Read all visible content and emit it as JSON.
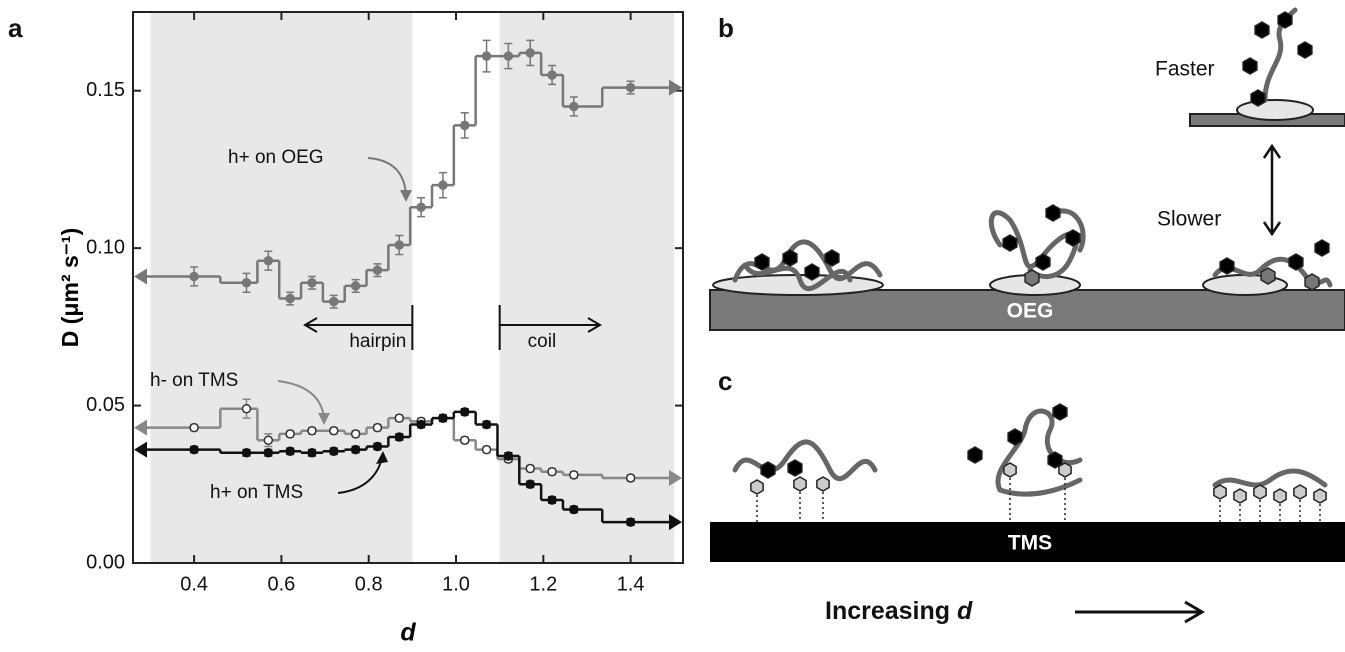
{
  "chart_data": {
    "type": "step",
    "x": [
      0.4,
      0.52,
      0.57,
      0.62,
      0.67,
      0.72,
      0.77,
      0.82,
      0.87,
      0.92,
      0.97,
      1.02,
      1.07,
      1.12,
      1.17,
      1.22,
      1.27,
      1.4
    ],
    "series": [
      {
        "name": "h+ on OEG",
        "color": "#777777",
        "marker": "filled",
        "values": [
          0.091,
          0.089,
          0.096,
          0.084,
          0.089,
          0.083,
          0.088,
          0.093,
          0.101,
          0.113,
          0.12,
          0.139,
          0.161,
          0.161,
          0.162,
          0.155,
          0.145,
          0.151
        ],
        "errors": [
          0.003,
          0.003,
          0.003,
          0.002,
          0.002,
          0.002,
          0.002,
          0.002,
          0.003,
          0.003,
          0.004,
          0.004,
          0.005,
          0.004,
          0.004,
          0.003,
          0.003,
          0.002
        ]
      },
      {
        "name": "h-  on TMS",
        "color": "#888888",
        "marker": "open",
        "values": [
          0.043,
          0.049,
          0.039,
          0.041,
          0.042,
          0.042,
          0.041,
          0.043,
          0.046,
          0.045,
          0.046,
          0.039,
          0.036,
          0.033,
          0.03,
          0.029,
          0.028,
          0.027
        ],
        "errors": [
          0.001,
          0.003,
          0.002,
          0.001,
          0.001,
          0.001,
          0.001,
          0.001,
          0.001,
          0.001,
          0.001,
          0.001,
          0.001,
          0.001,
          0.001,
          0.001,
          0.001,
          0.001
        ]
      },
      {
        "name": "h+ on TMS",
        "color": "#111111",
        "marker": "filled",
        "values": [
          0.036,
          0.035,
          0.035,
          0.0355,
          0.035,
          0.0355,
          0.036,
          0.037,
          0.04,
          0.044,
          0.046,
          0.048,
          0.044,
          0.034,
          0.025,
          0.02,
          0.017,
          0.013
        ],
        "errors": [
          0.001,
          0.001,
          0.001,
          0.001,
          0.001,
          0.001,
          0.001,
          0.001,
          0.001,
          0.001,
          0.001,
          0.001,
          0.001,
          0.001,
          0.001,
          0.001,
          0.001,
          0.001
        ]
      }
    ],
    "xlabel": "d",
    "ylabel": "D (μm² s⁻¹)",
    "xlim": [
      0.26,
      1.52
    ],
    "ylim": [
      0,
      0.175
    ],
    "xticks": [
      0.4,
      0.6,
      0.8,
      {
        "value": 1,
        "label": "1.0"
      },
      1.2,
      1.4
    ],
    "yticks": [
      {
        "value": 0,
        "label": "0.00"
      },
      {
        "value": 0.05,
        "label": "0.05"
      },
      {
        "value": 0.1,
        "label": "0.10"
      },
      {
        "value": 0.15,
        "label": "0.15"
      }
    ],
    "shaded_regions": [
      [
        0.3,
        0.9
      ],
      [
        1.1,
        1.5
      ]
    ],
    "annotations": [
      "hairpin",
      "coil"
    ]
  },
  "panels": {
    "a": "a",
    "b": "b",
    "c": "c"
  },
  "diagram": {
    "faster": "Faster",
    "slower": "Slower",
    "oeg": "OEG",
    "tms": "TMS",
    "increasing": "Increasing",
    "increasing_var": "d"
  }
}
